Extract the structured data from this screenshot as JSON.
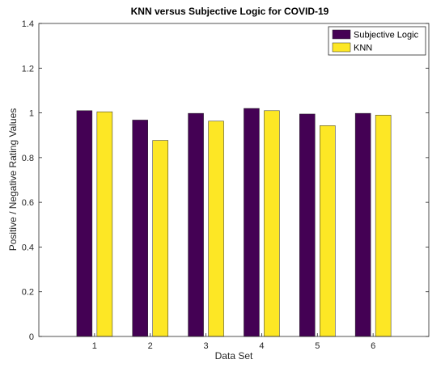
{
  "chart_data": {
    "type": "bar",
    "title": "KNN versus Subjective Logic for COVID-19",
    "xlabel": "Data Set",
    "ylabel": "Positive / Negative Rating Values",
    "categories": [
      "1",
      "2",
      "3",
      "4",
      "5",
      "6"
    ],
    "series": [
      {
        "name": "Subjective Logic",
        "color": "#440154",
        "values": [
          1.01,
          0.968,
          0.998,
          1.02,
          0.995,
          0.998
        ]
      },
      {
        "name": "KNN",
        "color": "#fde725",
        "values": [
          1.005,
          0.877,
          0.963,
          1.01,
          0.943,
          0.99
        ]
      }
    ],
    "ylim": [
      0,
      1.4
    ],
    "yticks": [
      "0",
      "0.2",
      "0.4",
      "0.6",
      "0.8",
      "1",
      "1.2",
      "1.4"
    ],
    "grid": false,
    "legend": "top-right"
  }
}
